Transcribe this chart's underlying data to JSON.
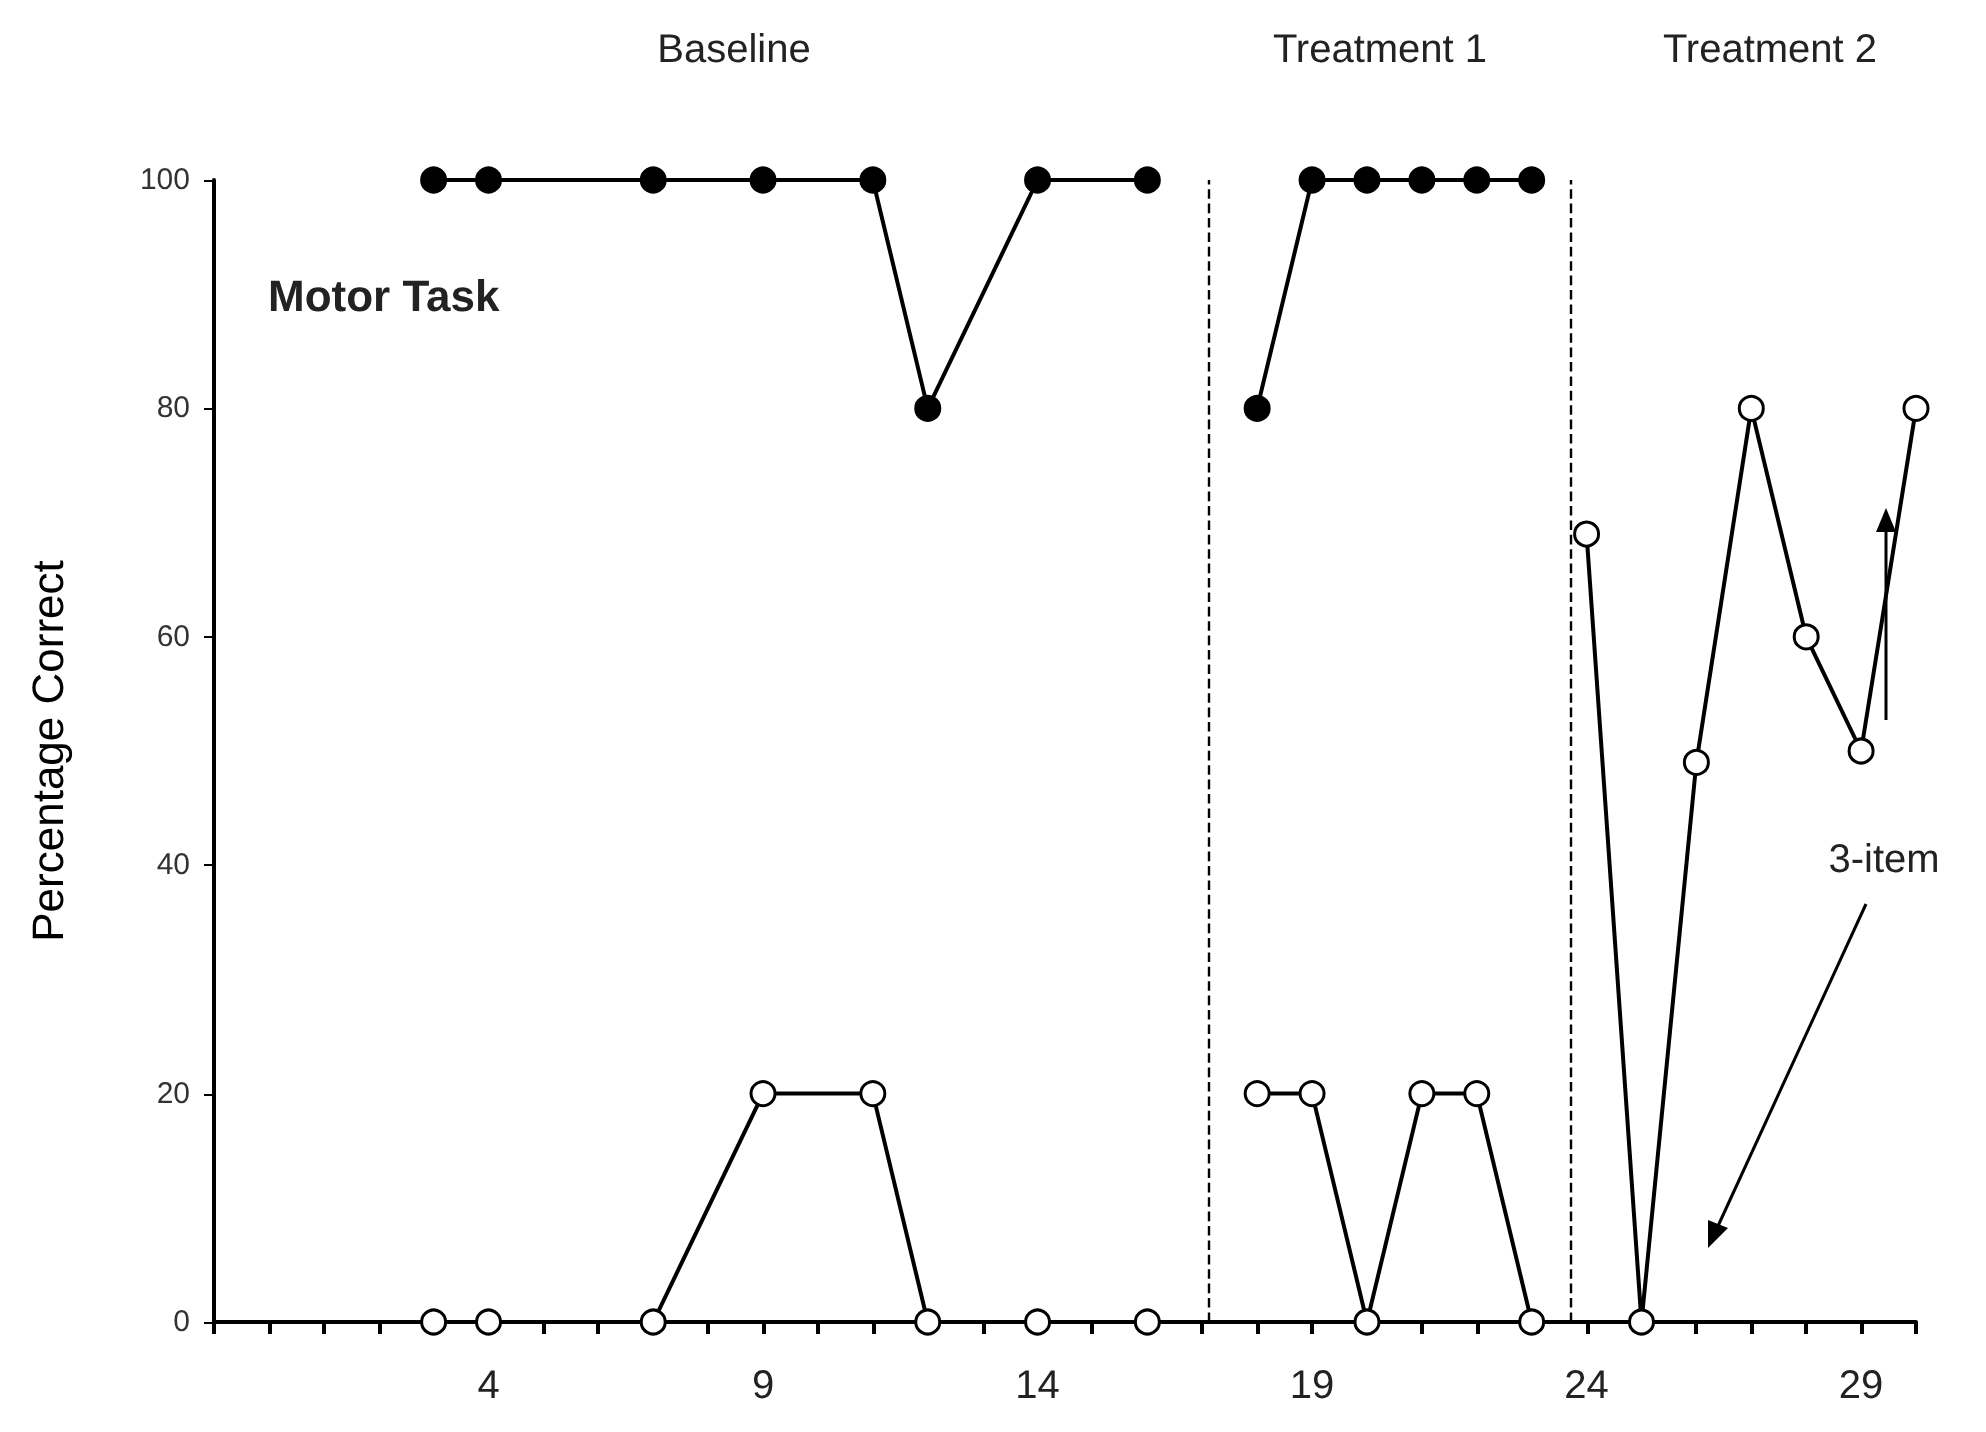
{
  "chart_data": {
    "type": "line",
    "ylabel": "Percentage Correct",
    "annotations": [
      "Baseline",
      "Treatment 1",
      "Treatment 2",
      "Motor Task",
      "3-item"
    ],
    "series": [
      {
        "color": "#000000",
        "x": [
          3,
          4,
          7,
          9,
          11,
          12,
          14,
          16,
          17,
          18,
          19,
          20,
          21,
          22,
          23
        ],
        "values": [
          100,
          100,
          100,
          100,
          100,
          80,
          100,
          100,
          null,
          80,
          100,
          100,
          100,
          100,
          100
        ]
      },
      {
        "color": "#000000",
        "x": [
          3,
          4,
          7,
          9,
          11,
          12,
          14,
          16,
          17,
          18,
          19,
          20,
          21,
          22,
          23,
          23.5,
          24,
          25,
          26,
          27,
          28,
          29,
          30
        ],
        "values": [
          0,
          0,
          0,
          20,
          20,
          0,
          0,
          0,
          null,
          20,
          20,
          0,
          20,
          20,
          0,
          null,
          69,
          0,
          49,
          80,
          60,
          50,
          80
        ]
      }
    ],
    "xlim": [
      -1,
      30
    ],
    "xticks": [
      {
        "value": -1,
        "label": null
      },
      {
        "value": 0,
        "label": null
      },
      {
        "value": 1,
        "label": null
      },
      {
        "value": 2,
        "label": null
      },
      {
        "value": 3,
        "label": null
      },
      4,
      {
        "value": 5,
        "label": null
      },
      {
        "value": 6,
        "label": null
      },
      {
        "value": 7,
        "label": null
      },
      {
        "value": 8,
        "label": null
      },
      9,
      {
        "value": 10,
        "label": null
      },
      {
        "value": 11,
        "label": null
      },
      {
        "value": 12,
        "label": null
      },
      {
        "value": 13,
        "label": null
      },
      14,
      {
        "value": 15,
        "label": null
      },
      {
        "value": 16,
        "label": null
      },
      {
        "value": 17,
        "label": null
      },
      {
        "value": 18,
        "label": null
      },
      19,
      {
        "value": 20,
        "label": null
      },
      {
        "value": 21,
        "label": null
      },
      {
        "value": 22,
        "label": null
      },
      {
        "value": 23,
        "label": null
      },
      24,
      {
        "value": 25,
        "label": null
      },
      {
        "value": 26,
        "label": null
      },
      {
        "value": 27,
        "label": null
      },
      {
        "value": 28,
        "label": null
      },
      29,
      {
        "value": 30,
        "label": null
      }
    ],
    "ylim": [
      0,
      100
    ],
    "yticks": [
      0,
      20,
      40,
      60,
      80,
      100
    ],
    "ref_lines": [
      {
        "axis": "x",
        "value": 17.1,
        "line_style": "dashed"
      },
      {
        "axis": "x",
        "value": 23.7,
        "line_style": "dashed"
      }
    ],
    "grid": false,
    "marker": "circle",
    "line_style": "solid"
  }
}
